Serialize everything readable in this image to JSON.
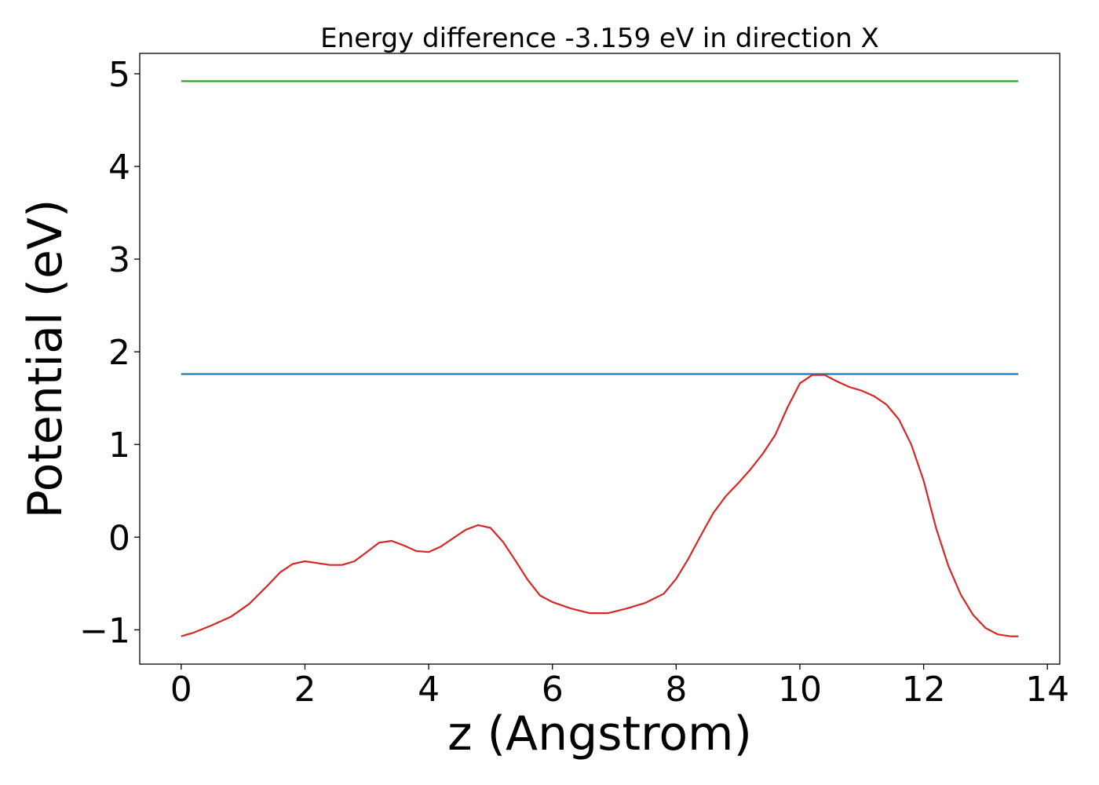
{
  "chart_data": {
    "type": "line",
    "title": "Energy difference -3.159 eV in direction X",
    "xlabel": "z (Angstrom)",
    "ylabel": "Potential (eV)",
    "xlim": [
      -0.67,
      14.2
    ],
    "ylim": [
      -1.37,
      5.22
    ],
    "x_ticks": [
      0,
      2,
      4,
      6,
      8,
      10,
      12,
      14
    ],
    "y_ticks": [
      -1,
      0,
      1,
      2,
      3,
      4,
      5
    ],
    "x_tick_labels": [
      "0",
      "2",
      "4",
      "6",
      "8",
      "10",
      "12",
      "14"
    ],
    "y_tick_labels": [
      "−1",
      "0",
      "1",
      "2",
      "3",
      "4",
      "5"
    ],
    "grid": false,
    "legend": "none",
    "series": [
      {
        "color": "#2ca02c",
        "x": [
          0,
          13.53
        ],
        "y": [
          4.92,
          4.92
        ]
      },
      {
        "color": "#1f77b4",
        "x": [
          0,
          13.53
        ],
        "y": [
          1.76,
          1.76
        ]
      },
      {
        "color": "#d62728",
        "x": [
          0,
          0.2,
          0.5,
          0.8,
          1.1,
          1.4,
          1.6,
          1.8,
          2.0,
          2.2,
          2.4,
          2.6,
          2.8,
          3.0,
          3.2,
          3.4,
          3.6,
          3.8,
          4.0,
          4.2,
          4.4,
          4.6,
          4.8,
          5.0,
          5.2,
          5.4,
          5.6,
          5.8,
          6.0,
          6.3,
          6.6,
          6.9,
          7.2,
          7.5,
          7.8,
          8.0,
          8.2,
          8.4,
          8.6,
          8.8,
          9.0,
          9.2,
          9.4,
          9.6,
          9.8,
          10.0,
          10.2,
          10.4,
          10.6,
          10.8,
          11.0,
          11.2,
          11.4,
          11.6,
          11.8,
          12.0,
          12.2,
          12.4,
          12.6,
          12.8,
          13.0,
          13.2,
          13.4,
          13.53
        ],
        "y": [
          -1.07,
          -1.03,
          -0.95,
          -0.86,
          -0.72,
          -0.52,
          -0.38,
          -0.29,
          -0.26,
          -0.28,
          -0.3,
          -0.3,
          -0.26,
          -0.16,
          -0.06,
          -0.04,
          -0.09,
          -0.15,
          -0.16,
          -0.1,
          -0.01,
          0.08,
          0.13,
          0.1,
          -0.05,
          -0.25,
          -0.46,
          -0.63,
          -0.7,
          -0.77,
          -0.82,
          -0.82,
          -0.77,
          -0.71,
          -0.61,
          -0.45,
          -0.23,
          0.02,
          0.26,
          0.44,
          0.58,
          0.73,
          0.9,
          1.1,
          1.4,
          1.66,
          1.75,
          1.75,
          1.68,
          1.62,
          1.58,
          1.52,
          1.43,
          1.27,
          1.0,
          0.61,
          0.1,
          -0.31,
          -0.62,
          -0.84,
          -0.98,
          -1.05,
          -1.07,
          -1.07
        ]
      }
    ]
  }
}
